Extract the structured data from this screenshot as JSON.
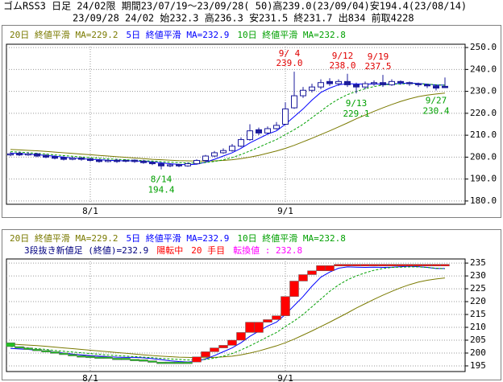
{
  "header": {
    "line1": "ゴムRSS3 日足 24/02限 期間23/07/19～23/09/28( 50)高239.0(23/09/04)安194.4(23/08/14)",
    "line2": "23/09/28 24/02 始232.3 高236.3 安231.5 終231.7 出834 前取4228"
  },
  "chart_data": [
    {
      "type": "candlestick",
      "categories": [
        null,
        null,
        null,
        null,
        null,
        null,
        null,
        null,
        null,
        "8/1",
        null,
        null,
        null,
        null,
        null,
        null,
        null,
        null,
        null,
        null,
        null,
        null,
        null,
        null,
        null,
        null,
        null,
        null,
        null,
        null,
        null,
        "9/1",
        null,
        null,
        null,
        null,
        null,
        null,
        null,
        null,
        null,
        null,
        null,
        null,
        null,
        null,
        null,
        null,
        null,
        null
      ],
      "open": [
        201.0,
        201.8,
        201.0,
        201.5,
        200.8,
        200.2,
        199.8,
        199.0,
        199.6,
        199.2,
        198.6,
        198.0,
        198.6,
        198.2,
        198.6,
        198.2,
        197.6,
        197.0,
        196.0,
        196.6,
        196.0,
        197.0,
        198.5,
        200.5,
        202.0,
        203.0,
        205.0,
        208.0,
        212.5,
        211.0,
        213.0,
        215.0,
        222.5,
        228.0,
        230.5,
        232.0,
        234.5,
        233.5,
        234.5,
        233.0,
        232.0,
        233.5,
        234.0,
        233.0,
        234.5,
        234.0,
        233.5,
        233.0,
        232.5,
        232.3
      ],
      "high": [
        202.3,
        202.5,
        202.2,
        202.0,
        201.4,
        200.8,
        200.4,
        200.2,
        200.0,
        199.8,
        199.2,
        199.0,
        199.2,
        199.0,
        199.0,
        198.8,
        198.0,
        197.5,
        197.2,
        197.0,
        197.6,
        199.0,
        201.0,
        202.8,
        204.0,
        206.0,
        209.0,
        215.0,
        213.5,
        214.0,
        216.0,
        225.0,
        239.0,
        232.0,
        233.5,
        235.5,
        236.0,
        235.5,
        238.0,
        234.0,
        234.5,
        235.0,
        237.5,
        235.5,
        235.0,
        234.5,
        234.0,
        233.5,
        233.0,
        236.3
      ],
      "low": [
        200.4,
        200.5,
        200.6,
        200.0,
        199.5,
        199.0,
        198.5,
        198.6,
        198.4,
        198.0,
        197.5,
        197.6,
        197.4,
        197.6,
        197.4,
        197.0,
        196.4,
        194.4,
        195.4,
        195.4,
        195.6,
        196.6,
        198.0,
        200.0,
        201.5,
        202.5,
        204.5,
        207.5,
        210.0,
        210.5,
        212.5,
        214.5,
        222.0,
        227.0,
        229.5,
        231.0,
        232.5,
        232.5,
        232.0,
        229.1,
        231.0,
        232.5,
        232.0,
        232.5,
        233.0,
        232.5,
        232.0,
        231.5,
        230.4,
        231.5
      ],
      "close": [
        201.5,
        201.0,
        201.5,
        200.5,
        200.0,
        199.5,
        199.0,
        199.5,
        199.0,
        198.5,
        198.0,
        198.5,
        198.0,
        198.5,
        198.0,
        197.5,
        197.0,
        196.0,
        196.5,
        196.0,
        197.0,
        198.5,
        200.5,
        202.0,
        203.0,
        205.0,
        208.0,
        212.0,
        211.0,
        213.0,
        214.5,
        222.0,
        228.0,
        230.5,
        232.0,
        234.0,
        233.5,
        234.5,
        233.0,
        232.0,
        233.5,
        234.0,
        233.0,
        234.5,
        234.0,
        233.5,
        233.0,
        232.5,
        231.5,
        231.7
      ],
      "up_color": "#ffffff",
      "down_color": "#1c1c9c",
      "edge_color": "#1c1c9c",
      "series": [
        {
          "name": "20日 終値平滑 MA=229.2",
          "color": "#7a7a00",
          "dash": false,
          "values": [
            203.5,
            203.3,
            203.1,
            202.9,
            202.6,
            202.3,
            202.0,
            201.7,
            201.4,
            201.1,
            200.8,
            200.5,
            200.2,
            199.9,
            199.6,
            199.3,
            199.0,
            198.8,
            198.6,
            198.4,
            198.3,
            198.2,
            198.2,
            198.3,
            198.5,
            198.8,
            199.3,
            200.0,
            200.8,
            201.8,
            202.8,
            204.0,
            205.4,
            207.0,
            208.6,
            210.3,
            212.0,
            213.8,
            215.6,
            217.5,
            219.2,
            220.9,
            222.5,
            224.0,
            225.4,
            226.6,
            227.6,
            228.3,
            228.8,
            229.2
          ]
        },
        {
          "name": "5日 終値平滑 MA=232.9",
          "color": "#0000ff",
          "dash": false,
          "values": [
            201.8,
            201.6,
            201.4,
            201.1,
            200.8,
            200.4,
            200.0,
            199.6,
            199.3,
            199.0,
            198.8,
            198.6,
            198.4,
            198.3,
            198.3,
            198.1,
            197.8,
            197.4,
            197.0,
            196.7,
            196.5,
            196.8,
            197.7,
            199.0,
            200.5,
            202.0,
            204.0,
            206.5,
            208.5,
            210.5,
            212.0,
            215.0,
            218.5,
            222.0,
            226.0,
            229.5,
            231.5,
            233.0,
            233.5,
            233.4,
            233.3,
            233.4,
            233.3,
            233.4,
            233.6,
            233.8,
            233.6,
            233.3,
            232.9,
            232.9
          ]
        },
        {
          "name": "10日 終値平滑 MA=232.8",
          "color": "#00a000",
          "dash": true,
          "values": [
            202.5,
            202.3,
            202.0,
            201.7,
            201.4,
            201.0,
            200.7,
            200.4,
            200.1,
            199.8,
            199.5,
            199.2,
            199.0,
            198.8,
            198.6,
            198.4,
            198.2,
            197.9,
            197.7,
            197.5,
            197.3,
            197.3,
            197.5,
            198.0,
            198.8,
            199.8,
            201.2,
            202.8,
            204.5,
            206.3,
            208.0,
            210.3,
            212.5,
            215.0,
            218.0,
            221.0,
            224.0,
            226.5,
            228.5,
            230.0,
            231.2,
            232.2,
            232.9,
            233.3,
            233.4,
            233.5,
            233.5,
            233.3,
            233.0,
            232.8
          ]
        }
      ],
      "ylim": [
        178.5,
        251.5
      ],
      "yticks": [
        {
          "value": 180,
          "label": "180.0"
        },
        {
          "value": 190,
          "label": "190.0"
        },
        {
          "value": 200,
          "label": "200.0"
        },
        {
          "value": 210,
          "label": "210.0"
        },
        {
          "value": 220,
          "label": "220.0"
        },
        {
          "value": 230,
          "label": "230.0"
        },
        {
          "value": 240,
          "label": "240.0"
        },
        {
          "value": 250,
          "label": "250.0"
        }
      ],
      "grid": true,
      "high_labels": [
        {
          "date": "9/ 4",
          "value": 239,
          "label": "239.0"
        },
        {
          "date": "9/12",
          "value": 238,
          "label": "238.0"
        },
        {
          "date": "9/19",
          "value": 237.5,
          "label": "237.5"
        }
      ],
      "low_labels": [
        {
          "date": "8/14",
          "value": 194.4,
          "label": "194.4"
        },
        {
          "date": "9/13",
          "value": 229.1,
          "label": "229.1"
        },
        {
          "date": "9/27",
          "value": 230.4,
          "label": "230.4"
        }
      ],
      "high_color": "#e00000",
      "low_color": "#00a000"
    },
    {
      "type": "line-break",
      "info": [
        {
          "text": "3段抜き新値足 (終値)=232.9",
          "color": "#000080"
        },
        {
          "text": "陽転中",
          "color": "#ff0000"
        },
        {
          "text": "20 手目",
          "color": "#ff0000"
        },
        {
          "text": "転換値 : 232.8",
          "color": "#ff00ff"
        }
      ],
      "lows": [
        202.5,
        202.0,
        201.5,
        201.0,
        200.5,
        200.0,
        199.5,
        199.0,
        198.8,
        198.5,
        198.0,
        198.0,
        197.6,
        197.6,
        197.4,
        197.0,
        196.5,
        196.0,
        196.0,
        196.0,
        196.0,
        196.5,
        198.5,
        200.5,
        202.0,
        203.0,
        205.0,
        208.0,
        208.0,
        212.0,
        213.0,
        214.5,
        222.0,
        228.0,
        230.5,
        232.0,
        232.0,
        234.0,
        234.0,
        234.0,
        234.0,
        234.0,
        234.0,
        234.0,
        234.0,
        234.0,
        234.0,
        234.0,
        234.0,
        234.0
      ],
      "highs": [
        204.0,
        202.5,
        202.0,
        201.5,
        201.0,
        200.5,
        200.0,
        199.5,
        199.0,
        198.8,
        198.5,
        198.5,
        198.0,
        198.0,
        197.6,
        197.4,
        197.0,
        196.5,
        196.5,
        196.5,
        196.5,
        198.5,
        200.5,
        202.0,
        203.0,
        205.0,
        208.0,
        212.0,
        212.0,
        213.0,
        214.5,
        222.0,
        228.0,
        230.5,
        232.0,
        234.0,
        234.0,
        234.5,
        234.5,
        234.5,
        234.5,
        234.5,
        234.5,
        234.5,
        234.5,
        234.5,
        234.5,
        234.5,
        234.5,
        234.5
      ],
      "up_color": "#ff0000",
      "down_color": "#22c022",
      "ylim": [
        192.8,
        236.6
      ],
      "yticks": [
        195,
        200,
        205,
        210,
        215,
        220,
        225,
        230,
        235
      ],
      "grid": true
    }
  ]
}
